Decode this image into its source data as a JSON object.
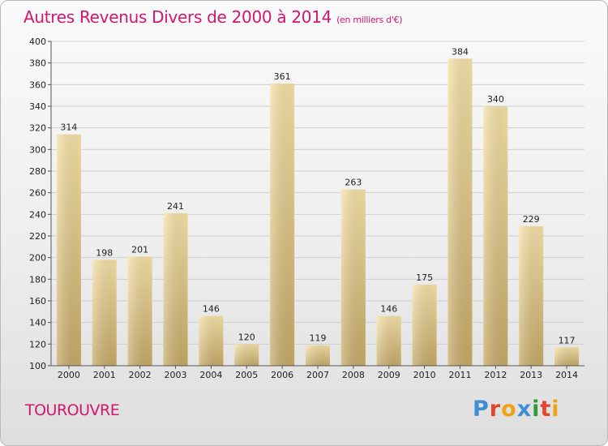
{
  "header": {
    "title": "Autres Revenus Divers de 2000 à 2014",
    "unit": "(en milliers d'€)"
  },
  "place": "TOUROUVRE",
  "logo": {
    "letters": [
      "P",
      "r",
      "o",
      "x",
      "i",
      "t",
      "i"
    ],
    "colors": [
      "#3d8fd1",
      "#e2452b",
      "#f0a215",
      "#3d8fd1",
      "#2f9b3a",
      "#e2452b",
      "#f0a215"
    ]
  },
  "colors": {
    "title": "#d2176f",
    "bar_light": "#f3dea0",
    "bar_dark": "#c9ad6a"
  },
  "chart_data": {
    "type": "bar",
    "categories": [
      "2000",
      "2001",
      "2002",
      "2003",
      "2004",
      "2005",
      "2006",
      "2007",
      "2008",
      "2009",
      "2010",
      "2011",
      "2012",
      "2013",
      "2014"
    ],
    "values": [
      314,
      198,
      201,
      241,
      146,
      120,
      361,
      119,
      263,
      146,
      175,
      384,
      340,
      229,
      117
    ],
    "title": "Autres Revenus Divers de 2000 à 2014",
    "ylim": [
      100,
      400
    ],
    "yticks": [
      100,
      120,
      140,
      160,
      180,
      200,
      220,
      240,
      260,
      280,
      300,
      320,
      340,
      360,
      380,
      400
    ],
    "grid": true,
    "data_labels": true
  }
}
